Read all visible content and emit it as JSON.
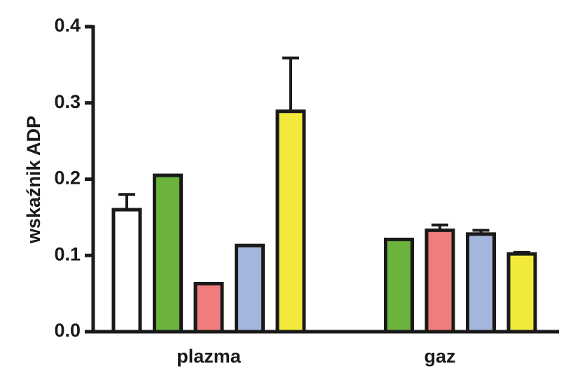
{
  "chart_data": {
    "type": "bar",
    "ylabel": "wskaźnik ADP",
    "categories": [
      "plazma",
      "gaz"
    ],
    "series": [
      {
        "color": "#ffffff",
        "values": [
          0.16,
          null
        ],
        "errors": [
          0.02,
          null
        ]
      },
      {
        "color": "#6cb33e",
        "values": [
          0.205,
          0.121
        ],
        "errors": [
          null,
          null
        ]
      },
      {
        "color": "#f07d7b",
        "values": [
          0.063,
          0.133
        ],
        "errors": [
          null,
          0.007
        ]
      },
      {
        "color": "#a4b6dd",
        "values": [
          0.113,
          0.128
        ],
        "errors": [
          null,
          0.005
        ]
      },
      {
        "color": "#f2ea3b",
        "values": [
          0.289,
          0.102
        ],
        "errors": [
          0.07,
          0.002
        ]
      }
    ],
    "ylim": [
      0,
      0.4
    ],
    "yticks": [
      {
        "value": 0,
        "label": "0.0"
      },
      0.1,
      0.2,
      0.3,
      0.4
    ]
  }
}
